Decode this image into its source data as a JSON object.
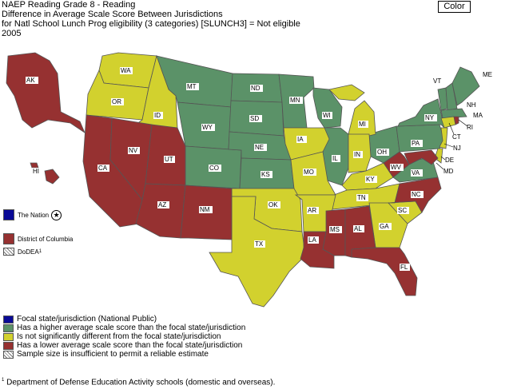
{
  "header": {
    "line1": "NAEP Reading Grade 8 - Reading",
    "line2": "Difference in Average Scale Score Between Jurisdictions",
    "line3": "for Natl School Lunch Prog eligibility (3 categories) [SLUNCH3] = Not eligible",
    "line4": "2005"
  },
  "color_button": "Color",
  "colors": {
    "focal": "#0a0a96",
    "higher": "#5b9268",
    "not_different": "#d2d12e",
    "lower": "#963131"
  },
  "side_items": {
    "nation": "The Nation",
    "dc": "District of Columbia",
    "dodea": "DoDEA",
    "dodea_sup": "1"
  },
  "states": {
    "WA": "WA",
    "OR": "OR",
    "CA": "CA",
    "NV": "NV",
    "ID": "ID",
    "MT": "MT",
    "WY": "WY",
    "UT": "UT",
    "AZ": "AZ",
    "NM": "NM",
    "CO": "CO",
    "ND": "ND",
    "SD": "SD",
    "NE": "NE",
    "KS": "KS",
    "OK": "OK",
    "TX": "TX",
    "MN": "MN",
    "IA": "IA",
    "MO": "MO",
    "AR": "AR",
    "LA": "LA",
    "WI": "WI",
    "IL": "IL",
    "MI": "MI",
    "IN": "IN",
    "OH": "OH",
    "KY": "KY",
    "TN": "TN",
    "MS": "MS",
    "AL": "AL",
    "GA": "GA",
    "FL": "FL",
    "SC": "SC",
    "NC": "NC",
    "VA": "VA",
    "WV": "WV",
    "PA": "PA",
    "NY": "NY",
    "VT": "VT",
    "NH": "NH",
    "ME": "ME",
    "MA": "MA",
    "RI": "RI",
    "CT": "CT",
    "NJ": "NJ",
    "DE": "DE",
    "MD": "MD",
    "AK": "AK",
    "HI": "HI"
  },
  "legend": [
    {
      "key": "focal",
      "label": "Focal state/jurisdiction (National Public)"
    },
    {
      "key": "higher",
      "label": "Has a higher average scale score than the focal state/jurisdiction"
    },
    {
      "key": "not_different",
      "label": "Is not significantly different from the focal state/jurisdiction"
    },
    {
      "key": "lower",
      "label": "Has a lower average scale score than the focal state/jurisdiction"
    },
    {
      "key": "insufficient",
      "label": "Sample size is insufficient to permit a reliable estimate"
    }
  ],
  "footnote": {
    "sup": "1",
    "text": " Department of Defense Education Activity schools (domestic and overseas)."
  }
}
